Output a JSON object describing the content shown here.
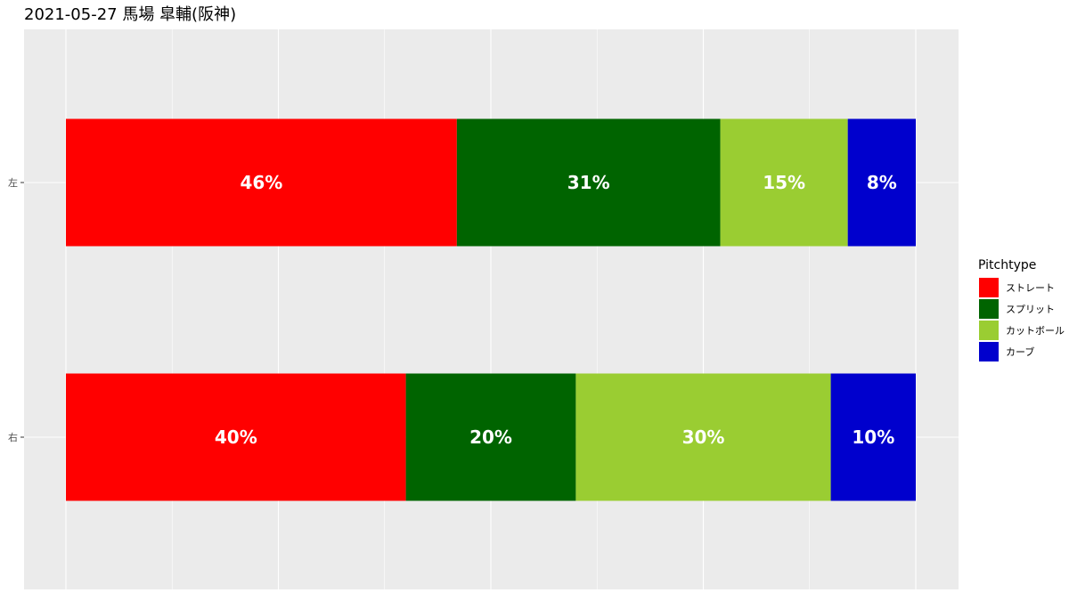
{
  "title": "2021-05-27 馬場 皐輔(阪神)",
  "legend": {
    "title": "Pitchtype",
    "position": "right"
  },
  "chart_data": {
    "type": "bar",
    "orientation": "horizontal",
    "stacked": true,
    "normalized": true,
    "title": "2021-05-27 馬場 皐輔(阪神)",
    "xlabel": "",
    "ylabel": "",
    "xlim": [
      0,
      1
    ],
    "grid": true,
    "legend_position": "right",
    "categories": [
      "左",
      "右"
    ],
    "series": [
      {
        "name": "ストレート",
        "color": "#ff0000",
        "values": [
          46,
          40
        ],
        "labels": [
          "46%",
          "40%"
        ]
      },
      {
        "name": "スプリット",
        "color": "#006400",
        "values": [
          31,
          20
        ],
        "labels": [
          "31%",
          "20%"
        ]
      },
      {
        "name": "カットボール",
        "color": "#9acd32",
        "values": [
          15,
          30
        ],
        "labels": [
          "15%",
          "30%"
        ]
      },
      {
        "name": "カーブ",
        "color": "#0000cd",
        "values": [
          8,
          10
        ],
        "labels": [
          "8%",
          "10%"
        ]
      }
    ]
  }
}
